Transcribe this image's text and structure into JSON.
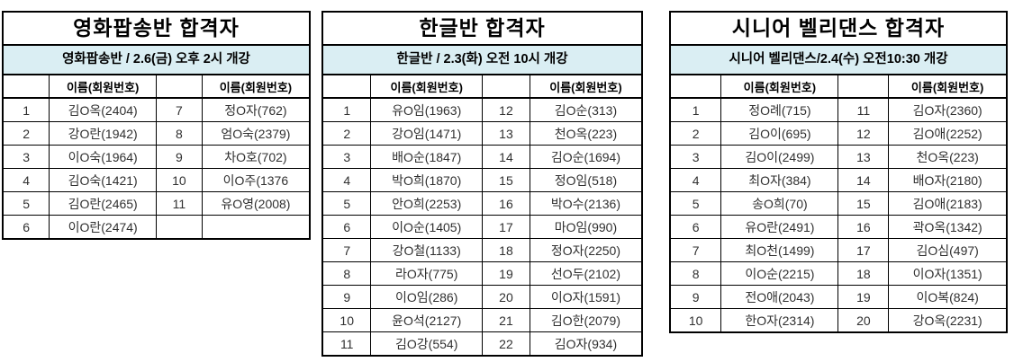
{
  "colors": {
    "subtitle_bg": "#daeef3",
    "border": "#000000",
    "title_text": "#000000",
    "data_text": "#303030",
    "page_bg": "#ffffff"
  },
  "tables": [
    {
      "title": "영화팝송반 합격자",
      "subtitle": "영화팝송반 / 2.6(금) 오후 2시 개강",
      "name_header": "이름(회원번호)",
      "rows": [
        [
          "1",
          "김O옥(2404)",
          "7",
          "정O자(762)"
        ],
        [
          "2",
          "강O란(1942)",
          "8",
          "엄O숙(2379)"
        ],
        [
          "3",
          "이O숙(1964)",
          "9",
          "차O호(702)"
        ],
        [
          "4",
          "김O숙(1421)",
          "10",
          "이O주(1376"
        ],
        [
          "5",
          "김O란(2465)",
          "11",
          "유O영(2008)"
        ],
        [
          "6",
          "이O란(2474)",
          "",
          ""
        ]
      ]
    },
    {
      "title": "한글반 합격자",
      "subtitle": "한글반 / 2.3(화) 오전 10시 개강",
      "name_header": "이름(회원번호)",
      "rows": [
        [
          "1",
          "유O임(1963)",
          "12",
          "김O순(313)"
        ],
        [
          "2",
          "강O임(1471)",
          "13",
          "천O옥(223)"
        ],
        [
          "3",
          "배O순(1847)",
          "14",
          "김O순(1694)"
        ],
        [
          "4",
          "박O희(1870)",
          "15",
          "정O임(518)"
        ],
        [
          "5",
          "안O희(2253)",
          "16",
          "박O수(2136)"
        ],
        [
          "6",
          "이O순(1405)",
          "17",
          "마O임(990)"
        ],
        [
          "7",
          "강O철(1133)",
          "18",
          "정O자(2250)"
        ],
        [
          "8",
          "라O자(775)",
          "19",
          "선O두(2102)"
        ],
        [
          "9",
          "이O임(286)",
          "20",
          "이O자(1591)"
        ],
        [
          "10",
          "윤O석(2127)",
          "21",
          "김O한(2079)"
        ],
        [
          "11",
          "김O강(554)",
          "22",
          "김O자(934)"
        ]
      ]
    },
    {
      "title": "시니어 벨리댄스 합격자",
      "subtitle": "시니어 벨리댄스/2.4(수) 오전10:30 개강",
      "name_header": "이름(회원번호)",
      "rows": [
        [
          "1",
          "정O례(715)",
          "11",
          "김O자(2360)"
        ],
        [
          "2",
          "김O이(695)",
          "12",
          "김O애(2252)"
        ],
        [
          "3",
          "김O이(2499)",
          "13",
          "천O옥(223)"
        ],
        [
          "4",
          "최O자(384)",
          "14",
          "배O자(2180)"
        ],
        [
          "5",
          "송O희(70)",
          "15",
          "김O애(2183)"
        ],
        [
          "6",
          "유O란(2491)",
          "16",
          "곽O옥(1342)"
        ],
        [
          "7",
          "최O천(1499)",
          "17",
          "김O심(497)"
        ],
        [
          "8",
          "이O순(2215)",
          "18",
          "이O자(1351)"
        ],
        [
          "9",
          "전O애(2043)",
          "19",
          "이O복(824)"
        ],
        [
          "10",
          "한O자(2314)",
          "20",
          "강O옥(2231)"
        ]
      ]
    }
  ]
}
